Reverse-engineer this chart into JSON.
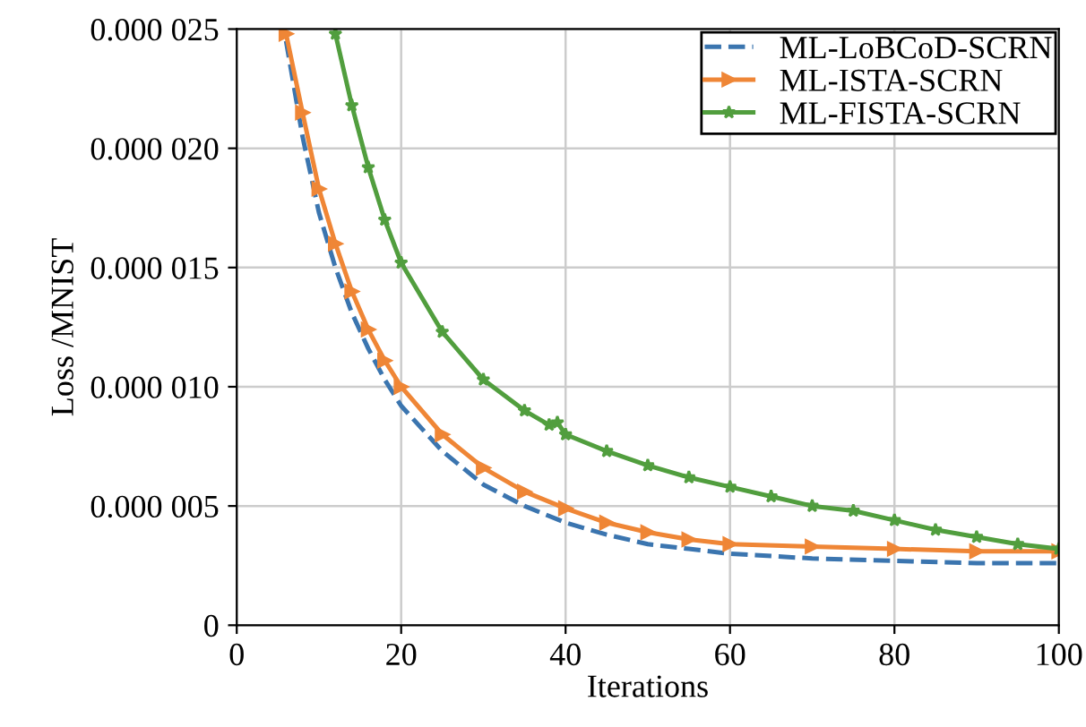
{
  "chart_data": {
    "type": "line",
    "xlabel": "Iterations",
    "ylabel": "Loss /MNIST",
    "xlim": [
      0,
      100
    ],
    "xticks": [
      0,
      20,
      40,
      60,
      80,
      100
    ],
    "ylim": [
      0,
      2.5e-05
    ],
    "yticks": [
      {
        "value": 0,
        "label": "0"
      },
      {
        "value": 5e-06,
        "label": "0.000 005"
      },
      {
        "value": 1e-05,
        "label": "0.000 010"
      },
      {
        "value": 1.5e-05,
        "label": "0.000 015"
      },
      {
        "value": 2e-05,
        "label": "0.000 020"
      },
      {
        "value": 2.5e-05,
        "label": "0.000 025"
      }
    ],
    "grid": true,
    "legend": "top right",
    "series": [
      {
        "name": "ML-LoBCoD-SCRN",
        "color": "#3b75af",
        "line_style": "dashed",
        "marker": "none",
        "x": [
          6,
          8,
          10,
          12,
          14,
          16,
          18,
          20,
          25,
          30,
          35,
          40,
          45,
          50,
          55,
          60,
          70,
          80,
          90,
          100
        ],
        "values": [
          2.45e-05,
          2.05e-05,
          1.73e-05,
          1.5e-05,
          1.31e-05,
          1.16e-05,
          1.03e-05,
          9.2e-06,
          7.3e-06,
          5.9e-06,
          5e-06,
          4.3e-06,
          3.8e-06,
          3.4e-06,
          3.2e-06,
          3e-06,
          2.8e-06,
          2.7e-06,
          2.6e-06,
          2.6e-06
        ]
      },
      {
        "name": "ML-ISTA-SCRN",
        "color": "#ef8636",
        "line_style": "solid",
        "marker": "triangle",
        "x": [
          6,
          8,
          10,
          12,
          14,
          16,
          18,
          20,
          25,
          30,
          35,
          40,
          45,
          50,
          55,
          60,
          70,
          80,
          90,
          100
        ],
        "values": [
          2.48e-05,
          2.15e-05,
          1.83e-05,
          1.6e-05,
          1.4e-05,
          1.24e-05,
          1.11e-05,
          1e-05,
          8e-06,
          6.6e-06,
          5.6e-06,
          4.9e-06,
          4.3e-06,
          3.9e-06,
          3.6e-06,
          3.4e-06,
          3.3e-06,
          3.2e-06,
          3.1e-06,
          3.1e-06
        ]
      },
      {
        "name": "ML-FISTA-SCRN",
        "color": "#519e3e",
        "line_style": "solid",
        "marker": "star",
        "x": [
          12,
          14,
          16,
          18,
          20,
          25,
          30,
          35,
          38,
          39,
          40,
          45,
          50,
          55,
          60,
          65,
          70,
          75,
          80,
          85,
          90,
          95,
          100
        ],
        "values": [
          2.48e-05,
          2.18e-05,
          1.92e-05,
          1.7e-05,
          1.52e-05,
          1.23e-05,
          1.03e-05,
          9e-06,
          8.4e-06,
          8.5e-06,
          8e-06,
          7.3e-06,
          6.7e-06,
          6.2e-06,
          5.8e-06,
          5.4e-06,
          5e-06,
          4.8e-06,
          4.4e-06,
          4e-06,
          3.7e-06,
          3.4e-06,
          3.2e-06
        ]
      }
    ]
  }
}
